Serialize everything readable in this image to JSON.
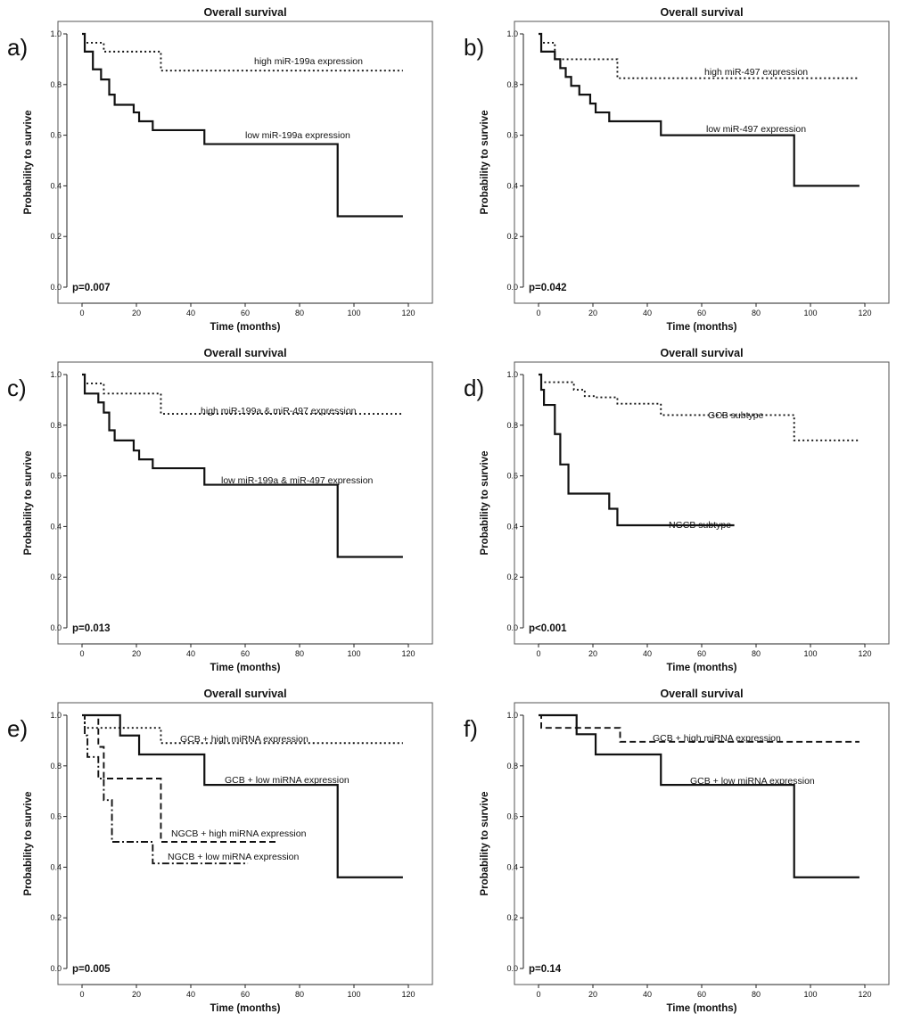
{
  "chart_data": [
    {
      "panel_label": "a)",
      "type": "line",
      "title": "Overall survival",
      "xlabel": "Time (months)",
      "ylabel": "Probability to survive",
      "xlim": [
        0,
        120
      ],
      "ylim": [
        0,
        1
      ],
      "x_ticks": [
        "0",
        "20",
        "40",
        "60",
        "80",
        "100",
        "120"
      ],
      "y_ticks": [
        "0.0",
        "0.2",
        "0.4",
        "0.6",
        "0.8",
        "1.0"
      ],
      "p_value": "p=0.007",
      "series": [
        {
          "name": "high miR-199a expression",
          "style": "dotted",
          "x": [
            0,
            1,
            8,
            29,
            118
          ],
          "y": [
            1.0,
            0.965,
            0.93,
            0.855,
            0.855
          ]
        },
        {
          "name": "low miR-199a expression",
          "style": "solid",
          "x": [
            0,
            1,
            4,
            7,
            10,
            12,
            15,
            19,
            21,
            26,
            45,
            94,
            118
          ],
          "y": [
            1.0,
            0.93,
            0.86,
            0.82,
            0.76,
            0.72,
            0.72,
            0.69,
            0.655,
            0.62,
            0.565,
            0.28,
            0.28
          ]
        }
      ],
      "annotations": [
        "high miR-199a expression",
        "low miR-199a expression"
      ]
    },
    {
      "panel_label": "b)",
      "type": "line",
      "title": "Overall survival",
      "xlabel": "Time (months)",
      "ylabel": "Probability to survive",
      "xlim": [
        0,
        120
      ],
      "ylim": [
        0,
        1
      ],
      "x_ticks": [
        "0",
        "20",
        "40",
        "60",
        "80",
        "100",
        "120"
      ],
      "y_ticks": [
        "0.0",
        "0.2",
        "0.4",
        "0.6",
        "0.8",
        "1.0"
      ],
      "p_value": "p=0.042",
      "series": [
        {
          "name": "high miR-497 expression",
          "style": "dotted",
          "x": [
            0,
            1,
            6,
            29,
            118
          ],
          "y": [
            1.0,
            0.965,
            0.9,
            0.825,
            0.825
          ]
        },
        {
          "name": "low miR-497 expression",
          "style": "solid",
          "x": [
            0,
            1,
            6,
            8,
            10,
            12,
            15,
            19,
            21,
            26,
            45,
            94,
            118
          ],
          "y": [
            1.0,
            0.93,
            0.9,
            0.865,
            0.83,
            0.795,
            0.76,
            0.725,
            0.69,
            0.655,
            0.6,
            0.4,
            0.4
          ]
        }
      ],
      "annotations": [
        "high miR-497 expression",
        "low miR-497 expression"
      ]
    },
    {
      "panel_label": "c)",
      "type": "line",
      "title": "Overall survival",
      "xlabel": "Time (months)",
      "ylabel": "Probability to survive",
      "xlim": [
        0,
        120
      ],
      "ylim": [
        0,
        1
      ],
      "x_ticks": [
        "0",
        "20",
        "40",
        "60",
        "80",
        "100",
        "120"
      ],
      "y_ticks": [
        "0.0",
        "0.2",
        "0.4",
        "0.6",
        "0.8",
        "1.0"
      ],
      "p_value": "p=0.013",
      "series": [
        {
          "name": "high miR-199a & miR-497 expression",
          "style": "dotted",
          "x": [
            0,
            1,
            8,
            29,
            118
          ],
          "y": [
            1.0,
            0.965,
            0.925,
            0.845,
            0.845
          ]
        },
        {
          "name": "low miR-199a & miR-497 expression",
          "style": "solid",
          "x": [
            0,
            1,
            6,
            8,
            10,
            12,
            15,
            19,
            21,
            26,
            45,
            94,
            118
          ],
          "y": [
            1.0,
            0.925,
            0.89,
            0.85,
            0.78,
            0.74,
            0.74,
            0.7,
            0.665,
            0.63,
            0.565,
            0.28,
            0.28
          ]
        }
      ],
      "annotations": [
        "high miR-199a & miR-497 expression",
        "low miR-199a & miR-497 expression"
      ]
    },
    {
      "panel_label": "d)",
      "type": "line",
      "title": "Overall survival",
      "xlabel": "Time (months)",
      "ylabel": "Probability to survive",
      "xlim": [
        0,
        120
      ],
      "ylim": [
        0,
        1
      ],
      "x_ticks": [
        "0",
        "20",
        "40",
        "60",
        "80",
        "100",
        "120"
      ],
      "y_ticks": [
        "0.0",
        "0.2",
        "0.4",
        "0.6",
        "0.8",
        "1.0"
      ],
      "p_value": "p<0.001",
      "series": [
        {
          "name": "GCB subtype",
          "style": "dotted",
          "x": [
            0,
            1,
            13,
            17,
            21,
            29,
            45,
            94,
            118
          ],
          "y": [
            1.0,
            0.97,
            0.94,
            0.915,
            0.91,
            0.885,
            0.84,
            0.74,
            0.74
          ]
        },
        {
          "name": "NGCB subtype",
          "style": "solid",
          "x": [
            0,
            1,
            2,
            6,
            8,
            11,
            26,
            29,
            72
          ],
          "y": [
            1.0,
            0.94,
            0.88,
            0.765,
            0.645,
            0.53,
            0.47,
            0.405,
            0.405
          ]
        }
      ],
      "annotations": [
        "GCB subtype",
        "NGCB subtype"
      ]
    },
    {
      "panel_label": "e)",
      "type": "line",
      "title": "Overall survival",
      "xlabel": "Time (months)",
      "ylabel": "Probability to survive",
      "xlim": [
        0,
        120
      ],
      "ylim": [
        0,
        1
      ],
      "x_ticks": [
        "0",
        "20",
        "40",
        "60",
        "80",
        "100",
        "120"
      ],
      "y_ticks": [
        "0.0",
        "0.2",
        "0.4",
        "0.6",
        "0.8",
        "1.0"
      ],
      "p_value": "p=0.005",
      "series": [
        {
          "name": "GCB + high miRNA expression",
          "style": "dotted",
          "x": [
            0,
            1,
            29,
            118
          ],
          "y": [
            1.0,
            0.95,
            0.89,
            0.89
          ]
        },
        {
          "name": "GCB + low miRNA expression",
          "style": "solid",
          "x": [
            0,
            14,
            21,
            45,
            94,
            118
          ],
          "y": [
            1.0,
            0.92,
            0.845,
            0.725,
            0.36,
            0.36
          ]
        },
        {
          "name": "NGCB + high miRNA expression",
          "style": "dashed",
          "x": [
            0,
            6,
            8,
            29,
            72
          ],
          "y": [
            1.0,
            0.875,
            0.75,
            0.5,
            0.5
          ]
        },
        {
          "name": "NGCB + low miRNA expression",
          "style": "dashdot",
          "x": [
            0,
            1,
            2,
            6,
            8,
            11,
            26,
            61
          ],
          "y": [
            1.0,
            0.92,
            0.835,
            0.75,
            0.665,
            0.5,
            0.415,
            0.415
          ]
        }
      ],
      "annotations": [
        "GCB + high miRNA expression",
        "GCB + low miRNA expression",
        "NGCB + high miRNA expression",
        "NGCB + low miRNA expression"
      ]
    },
    {
      "panel_label": "f)",
      "type": "line",
      "title": "Overall survival",
      "xlabel": "Time (months)",
      "ylabel": "Probability to survive",
      "xlim": [
        0,
        120
      ],
      "ylim": [
        0,
        1
      ],
      "x_ticks": [
        "0",
        "20",
        "40",
        "60",
        "80",
        "100",
        "120"
      ],
      "y_ticks": [
        "0.0",
        "0.2",
        "0.4",
        "0.6",
        "0.8",
        "1.0"
      ],
      "p_value": "p=0.14",
      "series": [
        {
          "name": "GCB + high miRNA expression",
          "style": "dashed",
          "x": [
            0,
            1,
            30,
            118
          ],
          "y": [
            1.0,
            0.95,
            0.895,
            0.895
          ]
        },
        {
          "name": "GCB + low miRNA expression",
          "style": "solid",
          "x": [
            0,
            14,
            21,
            45,
            94,
            118
          ],
          "y": [
            1.0,
            0.925,
            0.845,
            0.725,
            0.36,
            0.36
          ]
        }
      ],
      "annotations": [
        "GCB + high miRNA expression",
        "GCB + low miRNA expression"
      ]
    }
  ]
}
